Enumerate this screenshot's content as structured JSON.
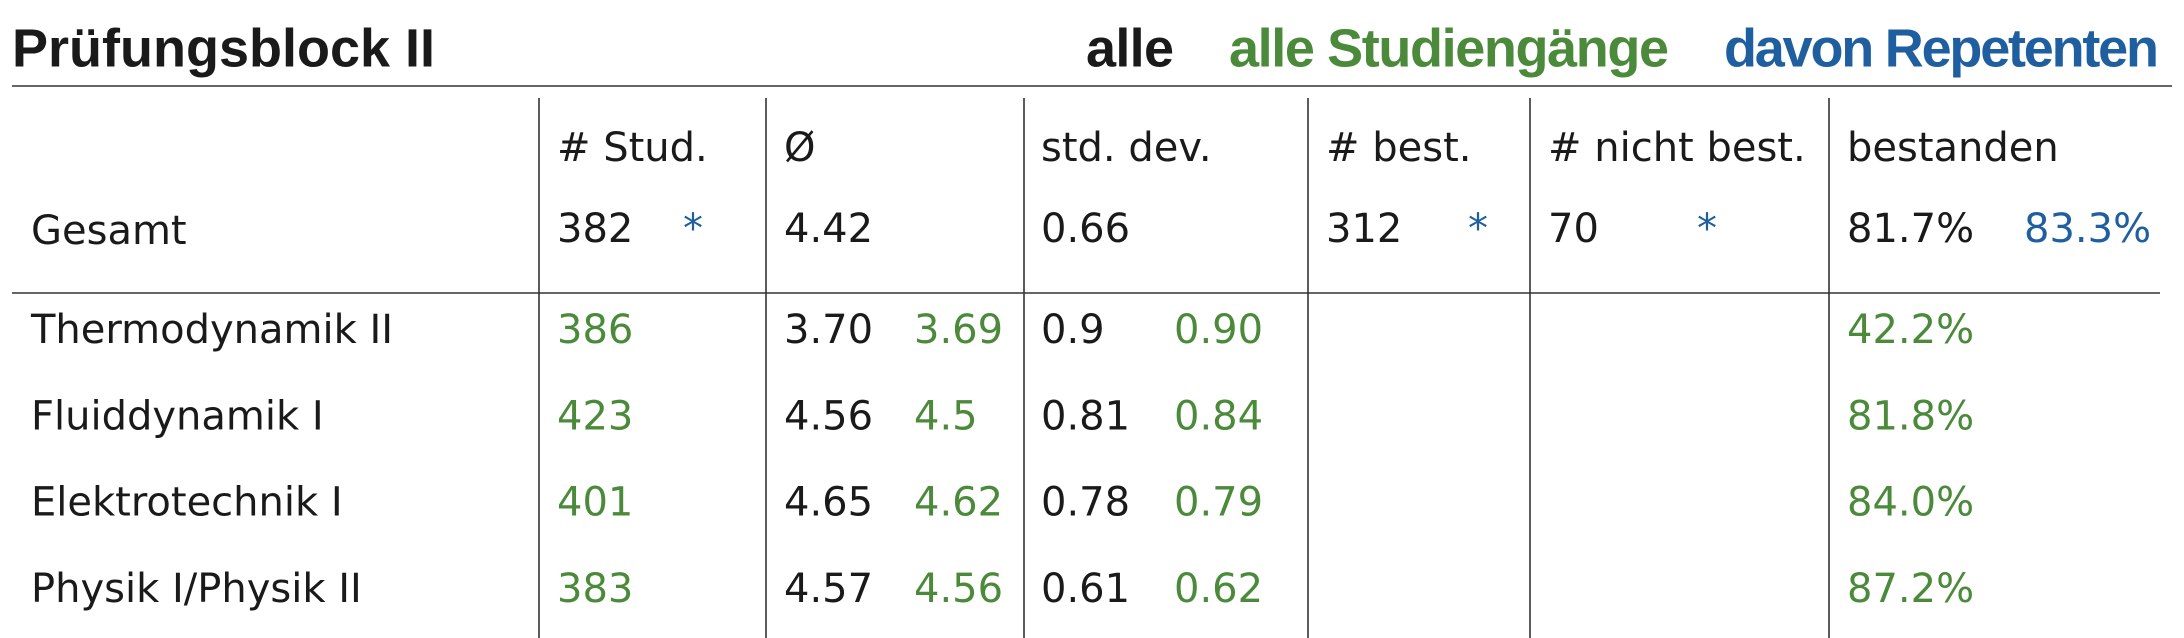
{
  "header": {
    "title": "Prüfungsblock II",
    "legend": [
      "alle",
      "alle Studiengänge",
      "davon Repetenten"
    ]
  },
  "table": {
    "columns": [
      "# Stud.",
      "Ø",
      "std. dev.",
      "# best.",
      "# nicht best.",
      "bestanden"
    ],
    "total": {
      "label": "Gesamt",
      "stud": "382",
      "stud_rep": "*",
      "avg": "4.42",
      "sd": "0.66",
      "best": "312",
      "best_rep": "*",
      "nicht": "70",
      "nicht_rep": "*",
      "pct": "81.7%",
      "pct_rep": "83.3%"
    },
    "rows": [
      [
        "Thermodynamik II",
        "386",
        "3.70",
        "3.69",
        "0.9",
        "0.90",
        "42.2%"
      ],
      [
        "Fluiddynamik I",
        "423",
        "4.56",
        "4.5",
        "0.81",
        "0.84",
        "81.8%"
      ],
      [
        "Elektrotechnik I",
        "401",
        "4.65",
        "4.62",
        "0.78",
        "0.79",
        "84.0%"
      ],
      [
        "Physik I/Physik II",
        "383",
        "4.57",
        "4.56",
        "0.61",
        "0.62",
        "87.2%"
      ]
    ]
  }
}
